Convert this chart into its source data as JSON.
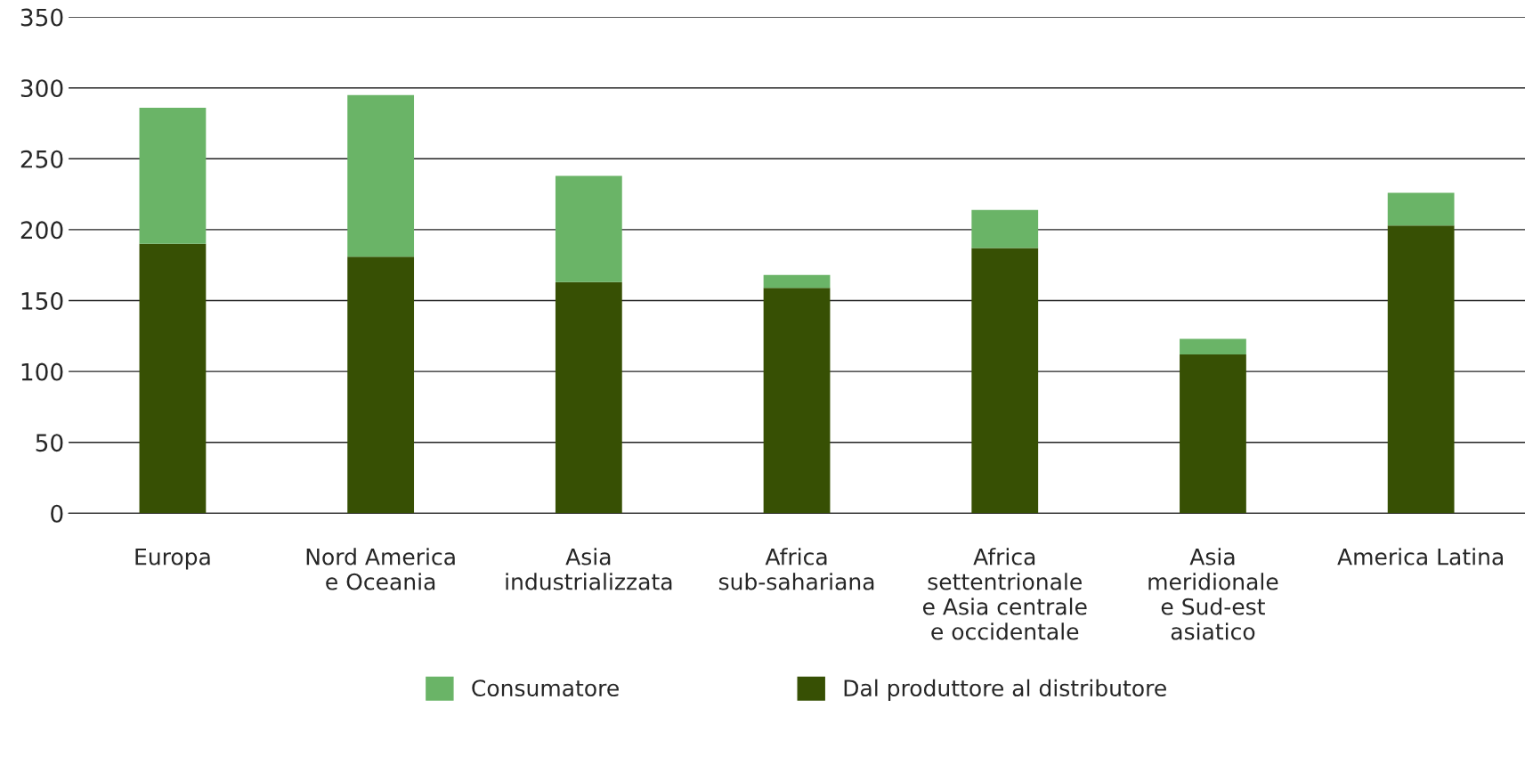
{
  "chart_data": {
    "type": "bar",
    "stacked": true,
    "categories": [
      "Europa",
      "Nord America\ne Oceania",
      "Asia\nindustrializzata",
      "Africa\nsub-sahariana",
      "Africa\nsettentrionale\ne Asia centrale\ne occidentale",
      "Asia\nmeridionale\ne Sud-est\nasiatico",
      "America Latina"
    ],
    "series": [
      {
        "name": "Dal produttore al distributore",
        "color": "#375004",
        "values": [
          190,
          181,
          163,
          159,
          187,
          112,
          203
        ]
      },
      {
        "name": "Consumatore",
        "color": "#6ab467",
        "values": [
          96,
          114,
          75,
          9,
          27,
          11,
          23
        ]
      }
    ],
    "ylim": [
      0,
      350
    ],
    "yticks": [
      0,
      50,
      100,
      150,
      200,
      250,
      300,
      350
    ],
    "grid": "y",
    "legend": "bottom"
  }
}
